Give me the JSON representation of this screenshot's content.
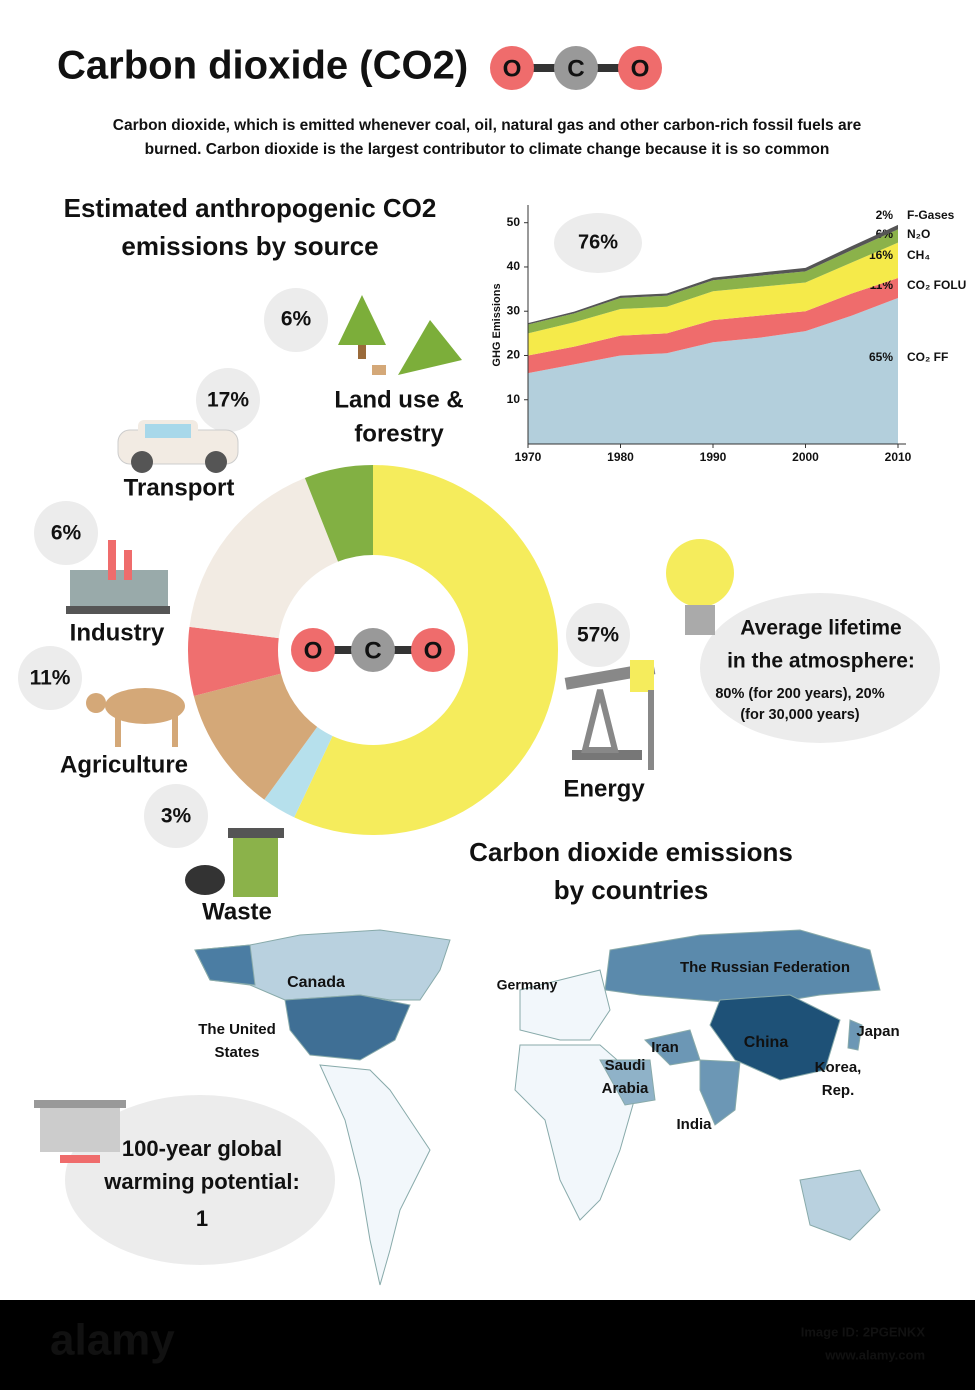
{
  "header": {
    "title": "Carbon dioxide (CO2)",
    "molecule": [
      "O",
      "C",
      "O"
    ],
    "subtitle": [
      "Carbon dioxide, which is emitted whenever coal, oil, natural gas and other carbon-rich fossil fuels are",
      "burned. Carbon dioxide is the largest contributor to climate change because it is so common"
    ]
  },
  "chart_data": [
    {
      "type": "donut",
      "title": [
        "Estimated anthropogenic CO2",
        "emissions by source"
      ],
      "categories": [
        [
          "Energy"
        ],
        [
          "Waste"
        ],
        [
          "Agriculture"
        ],
        [
          "Industry"
        ],
        [
          "Transport"
        ],
        [
          "Land use &",
          "forestry"
        ]
      ],
      "values": [
        57,
        3,
        11,
        6,
        17,
        6
      ],
      "value_labels": [
        "57%",
        "3%",
        "11%",
        "6%",
        "17%",
        "6%"
      ],
      "colors": [
        "#f5ec5c",
        "#b6e0ec",
        "#d4a878",
        "#ef6f6f",
        "#f2ebe3",
        "#82b043"
      ],
      "center_molecule": [
        "O",
        "C",
        "O"
      ]
    },
    {
      "type": "stacked-area",
      "y_label": "GHG Emissions",
      "annotation": "76%",
      "x": [
        1970,
        1975,
        1980,
        1985,
        1990,
        1995,
        2000,
        2005,
        2010
      ],
      "xlim": [
        1970,
        2010
      ],
      "xticks": [
        1970,
        1980,
        1990,
        2000,
        2010
      ],
      "ylim": [
        0,
        54
      ],
      "yticks": [
        10,
        20,
        30,
        40,
        50
      ],
      "series": [
        {
          "name": "CO₂ FF",
          "share": "65%",
          "color": "#b3cfdc",
          "values": [
            16,
            18,
            20,
            20.5,
            23,
            24,
            25.5,
            29,
            33
          ]
        },
        {
          "name": "CO₂ FOLU",
          "share": "11%",
          "color": "#ef6c6c",
          "values": [
            4,
            4,
            4.5,
            4.5,
            5,
            5,
            4.5,
            5,
            4.5
          ]
        },
        {
          "name": "CH₄",
          "share": "16%",
          "color": "#f5ea4a",
          "values": [
            5,
            5.5,
            6,
            6,
            6.5,
            6.5,
            6.5,
            7,
            8
          ]
        },
        {
          "name": "N₂O",
          "share": "6%",
          "color": "#8bb24a",
          "values": [
            2,
            2,
            2.5,
            2.5,
            2.5,
            2.5,
            2.5,
            2.8,
            3
          ]
        },
        {
          "name": "F-Gases",
          "share": "2%",
          "color": "#555555",
          "values": [
            0.3,
            0.4,
            0.5,
            0.5,
            0.6,
            0.7,
            0.8,
            0.9,
            1
          ]
        }
      ]
    }
  ],
  "lifetime": {
    "title": [
      "Average lifetime",
      "in the atmosphere:"
    ],
    "text": [
      "80% (for 200 years), 20%",
      "(for 30,000 years)"
    ]
  },
  "map": {
    "title": [
      "Carbon dioxide emissions",
      "by countries"
    ],
    "countries": [
      [
        "Canada"
      ],
      [
        "The United",
        "States"
      ],
      [
        "Germany"
      ],
      [
        "The Russian Federation"
      ],
      [
        "Iran"
      ],
      [
        "Saudi",
        "Arabia"
      ],
      [
        "China"
      ],
      [
        "Japan"
      ],
      [
        "Korea,",
        "Rep."
      ],
      [
        "India"
      ]
    ]
  },
  "gwp": {
    "title": [
      "100-year global",
      "warming potential:"
    ],
    "value": "1"
  },
  "footer": {
    "brand": "alamy",
    "image_id": "Image ID: 2PGENKX",
    "url": "www.alamy.com"
  }
}
